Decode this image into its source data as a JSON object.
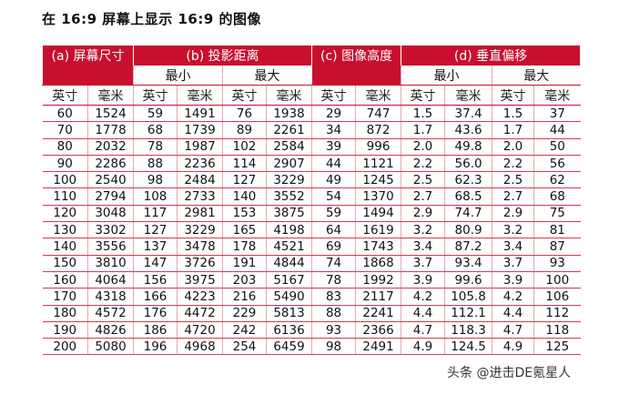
{
  "title": "在 16:9 屏幕上显示 16:9 的图像",
  "groups": {
    "a": "(a) 屏幕尺寸",
    "b": "(b) 投影距离",
    "c": "(c) 图像高度",
    "d": "(d) 垂直偏移"
  },
  "sub": {
    "b_min": "最小",
    "b_max": "最大",
    "d_min": "最小",
    "d_max": "最大"
  },
  "units": [
    "英寸",
    "毫米",
    "英寸",
    "毫米",
    "英寸",
    "毫米",
    "英寸",
    "毫米",
    "英寸",
    "毫米",
    "英寸",
    "毫米"
  ],
  "rows": [
    [
      "60",
      "1524",
      "59",
      "1491",
      "76",
      "1938",
      "29",
      "747",
      "1.5",
      "37.4",
      "1.5",
      "37"
    ],
    [
      "70",
      "1778",
      "68",
      "1739",
      "89",
      "2261",
      "34",
      "872",
      "1.7",
      "43.6",
      "1.7",
      "44"
    ],
    [
      "80",
      "2032",
      "78",
      "1987",
      "102",
      "2584",
      "39",
      "996",
      "2.0",
      "49.8",
      "2.0",
      "50"
    ],
    [
      "90",
      "2286",
      "88",
      "2236",
      "114",
      "2907",
      "44",
      "1121",
      "2.2",
      "56.0",
      "2.2",
      "56"
    ],
    [
      "100",
      "2540",
      "98",
      "2484",
      "127",
      "3229",
      "49",
      "1245",
      "2.5",
      "62.3",
      "2.5",
      "62"
    ],
    [
      "110",
      "2794",
      "108",
      "2733",
      "140",
      "3552",
      "54",
      "1370",
      "2.7",
      "68.5",
      "2.7",
      "68"
    ],
    [
      "120",
      "3048",
      "117",
      "2981",
      "153",
      "3875",
      "59",
      "1494",
      "2.9",
      "74.7",
      "2.9",
      "75"
    ],
    [
      "130",
      "3302",
      "127",
      "3229",
      "165",
      "4198",
      "64",
      "1619",
      "3.2",
      "80.9",
      "3.2",
      "81"
    ],
    [
      "140",
      "3556",
      "137",
      "3478",
      "178",
      "4521",
      "69",
      "1743",
      "3.4",
      "87.2",
      "3.4",
      "87"
    ],
    [
      "150",
      "3810",
      "147",
      "3726",
      "191",
      "4844",
      "74",
      "1868",
      "3.7",
      "93.4",
      "3.7",
      "93"
    ],
    [
      "160",
      "4064",
      "156",
      "3975",
      "203",
      "5167",
      "78",
      "1992",
      "3.9",
      "99.6",
      "3.9",
      "100"
    ],
    [
      "170",
      "4318",
      "166",
      "4223",
      "216",
      "5490",
      "83",
      "2117",
      "4.2",
      "105.8",
      "4.2",
      "106"
    ],
    [
      "180",
      "4572",
      "176",
      "4472",
      "229",
      "5813",
      "88",
      "2241",
      "4.4",
      "112.1",
      "4.4",
      "112"
    ],
    [
      "190",
      "4826",
      "186",
      "4720",
      "242",
      "6136",
      "93",
      "2366",
      "4.7",
      "118.3",
      "4.7",
      "118"
    ],
    [
      "200",
      "5080",
      "196",
      "4968",
      "254",
      "6459",
      "98",
      "2491",
      "4.9",
      "124.5",
      "4.9",
      "125"
    ]
  ],
  "watermark": "头条 @进击DE氪星人",
  "colors": {
    "header_red": "#c8102e",
    "rule_red": "#d43a52",
    "text": "#111111"
  }
}
